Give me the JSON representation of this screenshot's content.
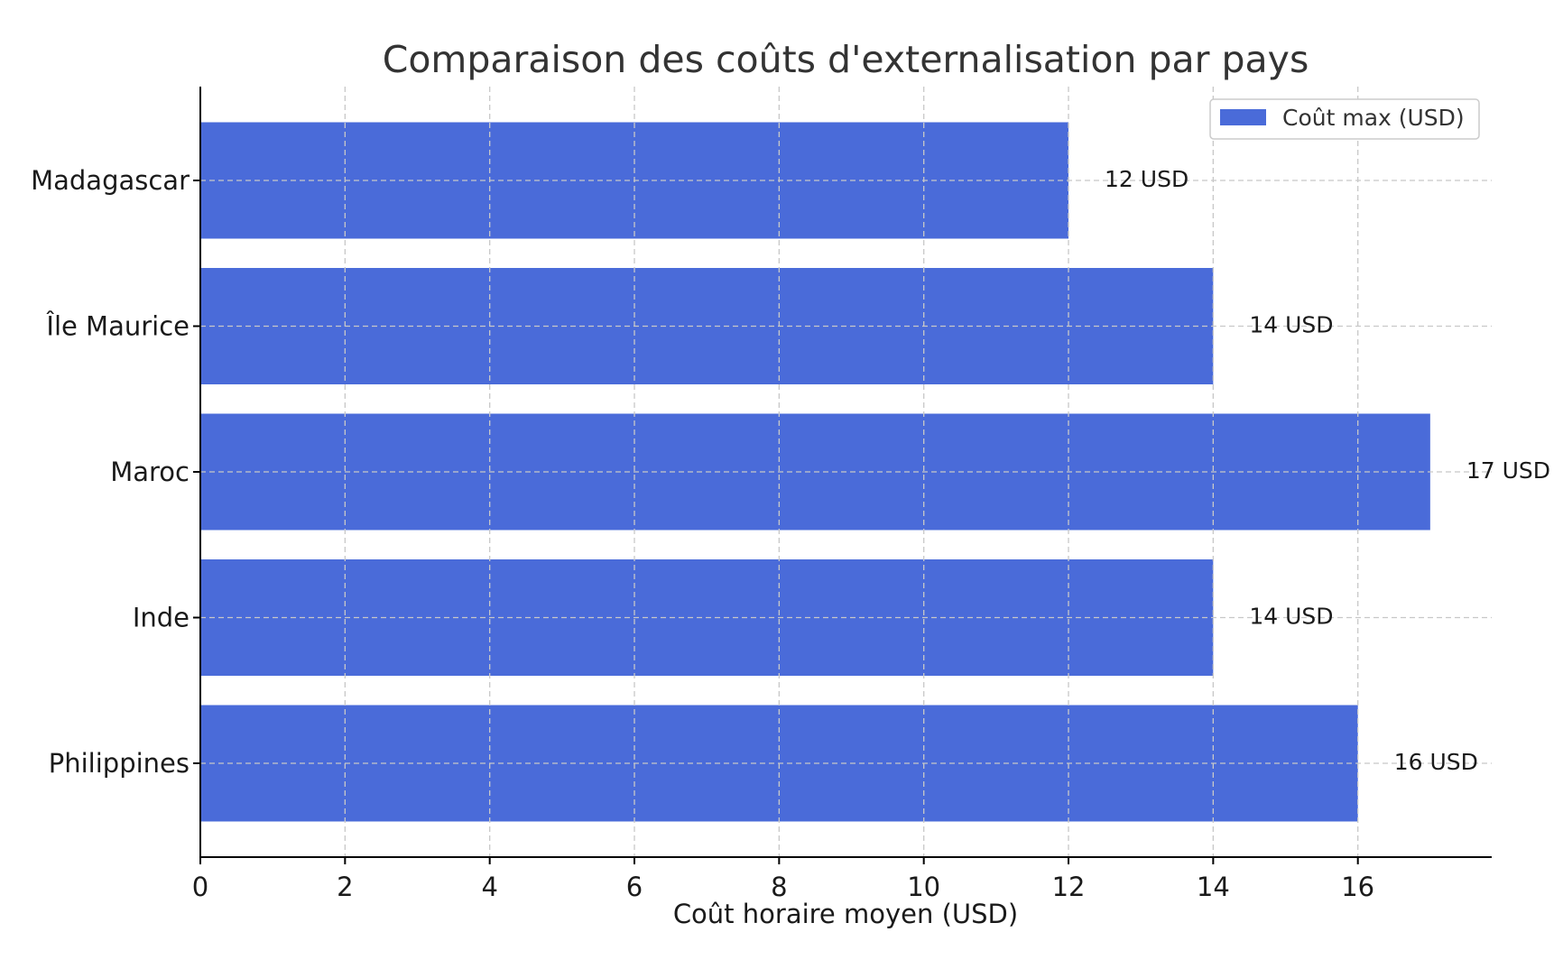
{
  "chart_data": {
    "type": "bar",
    "orientation": "horizontal",
    "title": "Comparaison des coûts d'externalisation par pays",
    "xlabel": "Coût horaire moyen (USD)",
    "ylabel": "",
    "categories": [
      "Madagascar",
      "Île Maurice",
      "Maroc",
      "Inde",
      "Philippines"
    ],
    "series": [
      {
        "name": "Coût max (USD)",
        "values": [
          12,
          14,
          17,
          14,
          16
        ],
        "color": "#4a6bd9"
      }
    ],
    "data_labels": [
      "12 USD",
      "14 USD",
      "17 USD",
      "14 USD",
      "16 USD"
    ],
    "xlim": [
      0,
      17.85
    ],
    "xticks": [
      0,
      2,
      4,
      6,
      8,
      10,
      12,
      14,
      16
    ],
    "grid": true,
    "legend": "top-right"
  }
}
